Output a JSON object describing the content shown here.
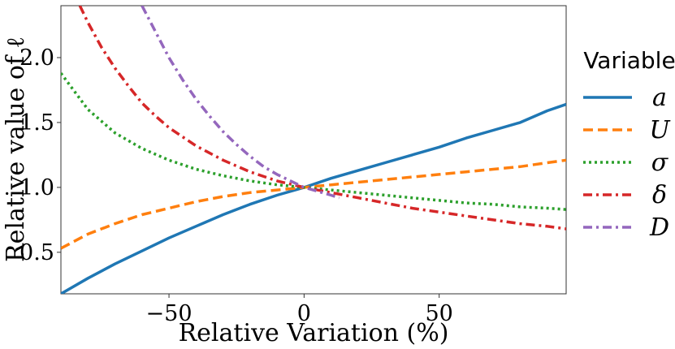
{
  "chart_data": {
    "type": "line",
    "title": "",
    "xlabel": "Relative Variation (%)",
    "ylabel": "Relative value of ℓ",
    "xlim": [
      -90,
      97
    ],
    "ylim": [
      0.18,
      2.4
    ],
    "xticks": [
      -50,
      0,
      50
    ],
    "xtick_labels": [
      "−50",
      "0",
      "50"
    ],
    "yticks": [
      0.5,
      1.0,
      1.5,
      2.0
    ],
    "ytick_labels": [
      "0.5",
      "1.0",
      "1.5",
      "2.0"
    ],
    "grid": false,
    "legend": {
      "title": "Variable",
      "placement": "right-outside"
    },
    "series": [
      {
        "name": "a",
        "color": "#1f77b4",
        "style": "solid",
        "x": [
          -90,
          -80,
          -70,
          -60,
          -50,
          -40,
          -30,
          -20,
          -10,
          0,
          10,
          20,
          30,
          40,
          50,
          60,
          70,
          80,
          90,
          97
        ],
        "y": [
          0.18,
          0.3,
          0.41,
          0.51,
          0.61,
          0.7,
          0.79,
          0.87,
          0.94,
          1.0,
          1.07,
          1.13,
          1.19,
          1.25,
          1.31,
          1.38,
          1.44,
          1.5,
          1.59,
          1.64
        ]
      },
      {
        "name": "U",
        "color": "#ff7f0e",
        "style": "dashed",
        "x": [
          -90,
          -80,
          -70,
          -60,
          -50,
          -40,
          -30,
          -20,
          -10,
          0,
          10,
          20,
          30,
          40,
          50,
          60,
          70,
          80,
          90,
          97
        ],
        "y": [
          0.53,
          0.64,
          0.72,
          0.79,
          0.84,
          0.89,
          0.93,
          0.96,
          0.98,
          1.0,
          1.02,
          1.04,
          1.06,
          1.08,
          1.1,
          1.12,
          1.14,
          1.16,
          1.19,
          1.21
        ]
      },
      {
        "name": "σ",
        "color": "#2ca02c",
        "style": "dotted",
        "x": [
          -90,
          -80,
          -70,
          -60,
          -50,
          -40,
          -30,
          -20,
          -10,
          0,
          10,
          20,
          30,
          40,
          50,
          60,
          70,
          80,
          90,
          97
        ],
        "y": [
          1.88,
          1.6,
          1.42,
          1.3,
          1.21,
          1.14,
          1.09,
          1.05,
          1.02,
          1.0,
          0.98,
          0.96,
          0.94,
          0.92,
          0.9,
          0.88,
          0.87,
          0.85,
          0.84,
          0.83
        ]
      },
      {
        "name": "δ",
        "color": "#d62728",
        "style": "dashdot",
        "x": [
          -83,
          -80,
          -75,
          -70,
          -65,
          -60,
          -55,
          -50,
          -40,
          -30,
          -20,
          -10,
          0,
          10,
          20,
          30,
          40,
          50,
          60,
          70,
          80,
          90,
          97
        ],
        "y": [
          2.4,
          2.27,
          2.08,
          1.92,
          1.78,
          1.65,
          1.55,
          1.46,
          1.32,
          1.21,
          1.12,
          1.05,
          1.0,
          0.96,
          0.92,
          0.88,
          0.84,
          0.81,
          0.78,
          0.75,
          0.72,
          0.7,
          0.68
        ]
      },
      {
        "name": "D",
        "color": "#9467bd",
        "style": "dashdot",
        "x": [
          -60,
          -55,
          -50,
          -45,
          -40,
          -35,
          -30,
          -25,
          -20,
          -15,
          -10,
          -5,
          0,
          5,
          10,
          13
        ],
        "y": [
          2.4,
          2.2,
          2.0,
          1.83,
          1.68,
          1.55,
          1.43,
          1.33,
          1.24,
          1.16,
          1.1,
          1.05,
          1.0,
          0.97,
          0.94,
          0.92
        ]
      }
    ]
  }
}
